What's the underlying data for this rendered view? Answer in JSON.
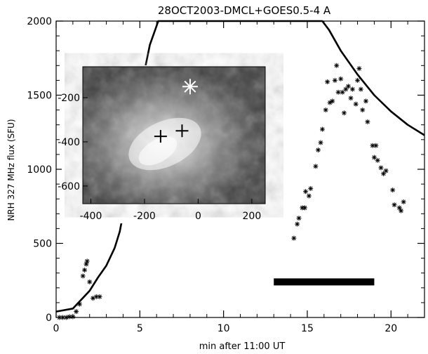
{
  "chart_data": {
    "type": "scatter",
    "title": "28OCT2003-DMCL+GOES0.5-4 A",
    "xlabel": "min after 11:00 UT",
    "ylabel": "NRH 327 MHz flux (SFU)",
    "xlim": [
      0,
      22
    ],
    "ylim": [
      0,
      2000
    ],
    "x_ticks": [
      0,
      5,
      10,
      15,
      20
    ],
    "y_ticks": [
      0,
      500,
      1000,
      1500,
      2000
    ],
    "series": [
      {
        "kind": "scatter",
        "marker": "asterisk",
        "points": [
          [
            0.2,
            0
          ],
          [
            0.4,
            0
          ],
          [
            0.6,
            0
          ],
          [
            0.8,
            5
          ],
          [
            1.0,
            5
          ],
          [
            1.2,
            40
          ],
          [
            1.4,
            90
          ],
          [
            1.6,
            280
          ],
          [
            1.7,
            320
          ],
          [
            1.8,
            360
          ],
          [
            1.85,
            380
          ],
          [
            2.0,
            240
          ],
          [
            2.2,
            130
          ],
          [
            2.4,
            140
          ],
          [
            2.6,
            140
          ],
          [
            14.2,
            535
          ],
          [
            14.4,
            630
          ],
          [
            14.5,
            670
          ],
          [
            14.7,
            740
          ],
          [
            14.85,
            740
          ],
          [
            14.9,
            850
          ],
          [
            15.1,
            820
          ],
          [
            15.2,
            870
          ],
          [
            15.5,
            1020
          ],
          [
            15.65,
            1130
          ],
          [
            15.8,
            1180
          ],
          [
            15.9,
            1270
          ],
          [
            16.1,
            1400
          ],
          [
            16.2,
            1590
          ],
          [
            16.35,
            1450
          ],
          [
            16.5,
            1460
          ],
          [
            16.65,
            1600
          ],
          [
            16.75,
            1700
          ],
          [
            16.85,
            1520
          ],
          [
            17.0,
            1610
          ],
          [
            17.1,
            1520
          ],
          [
            17.2,
            1380
          ],
          [
            17.3,
            1540
          ],
          [
            17.45,
            1560
          ],
          [
            17.6,
            1480
          ],
          [
            17.7,
            1540
          ],
          [
            17.9,
            1440
          ],
          [
            18.0,
            1600
          ],
          [
            18.1,
            1680
          ],
          [
            18.2,
            1540
          ],
          [
            18.3,
            1400
          ],
          [
            18.5,
            1460
          ],
          [
            18.6,
            1320
          ],
          [
            18.9,
            1160
          ],
          [
            19.1,
            1160
          ],
          [
            19.0,
            1080
          ],
          [
            19.2,
            1060
          ],
          [
            19.4,
            1010
          ],
          [
            19.55,
            970
          ],
          [
            19.7,
            990
          ],
          [
            20.1,
            860
          ],
          [
            20.2,
            760
          ],
          [
            20.5,
            740
          ],
          [
            20.6,
            720
          ],
          [
            20.75,
            780
          ]
        ]
      },
      {
        "kind": "line",
        "points": [
          [
            0,
            40
          ],
          [
            1.0,
            60
          ],
          [
            1.5,
            120
          ],
          [
            2.0,
            180
          ],
          [
            2.5,
            270
          ],
          [
            3.0,
            350
          ],
          [
            3.5,
            470
          ],
          [
            3.8,
            580
          ],
          [
            4.0,
            700
          ],
          [
            4.2,
            870
          ],
          [
            4.5,
            1120
          ],
          [
            4.8,
            1370
          ],
          [
            5.2,
            1620
          ],
          [
            5.6,
            1840
          ],
          [
            6.1,
            2000
          ],
          [
            15.9,
            2000
          ],
          [
            16.3,
            1940
          ],
          [
            17.0,
            1800
          ],
          [
            18.0,
            1640
          ],
          [
            19.0,
            1500
          ],
          [
            20.0,
            1390
          ],
          [
            21.0,
            1300
          ],
          [
            22.0,
            1230
          ]
        ]
      },
      {
        "kind": "bar",
        "x": [
          13,
          19
        ],
        "y": 240
      }
    ],
    "inset": {
      "type": "image",
      "x_ticks": [
        -400,
        -200,
        0,
        200
      ],
      "y_ticks": [
        -200,
        -400,
        -600
      ],
      "xlim": [
        -430,
        250
      ],
      "ylim": [
        -680,
        -60
      ],
      "markers": [
        {
          "symbol": "plus",
          "x": -140,
          "y": -375
        },
        {
          "symbol": "plus",
          "x": -60,
          "y": -350
        },
        {
          "symbol": "asterisk",
          "x": -30,
          "y": -150
        }
      ]
    }
  }
}
